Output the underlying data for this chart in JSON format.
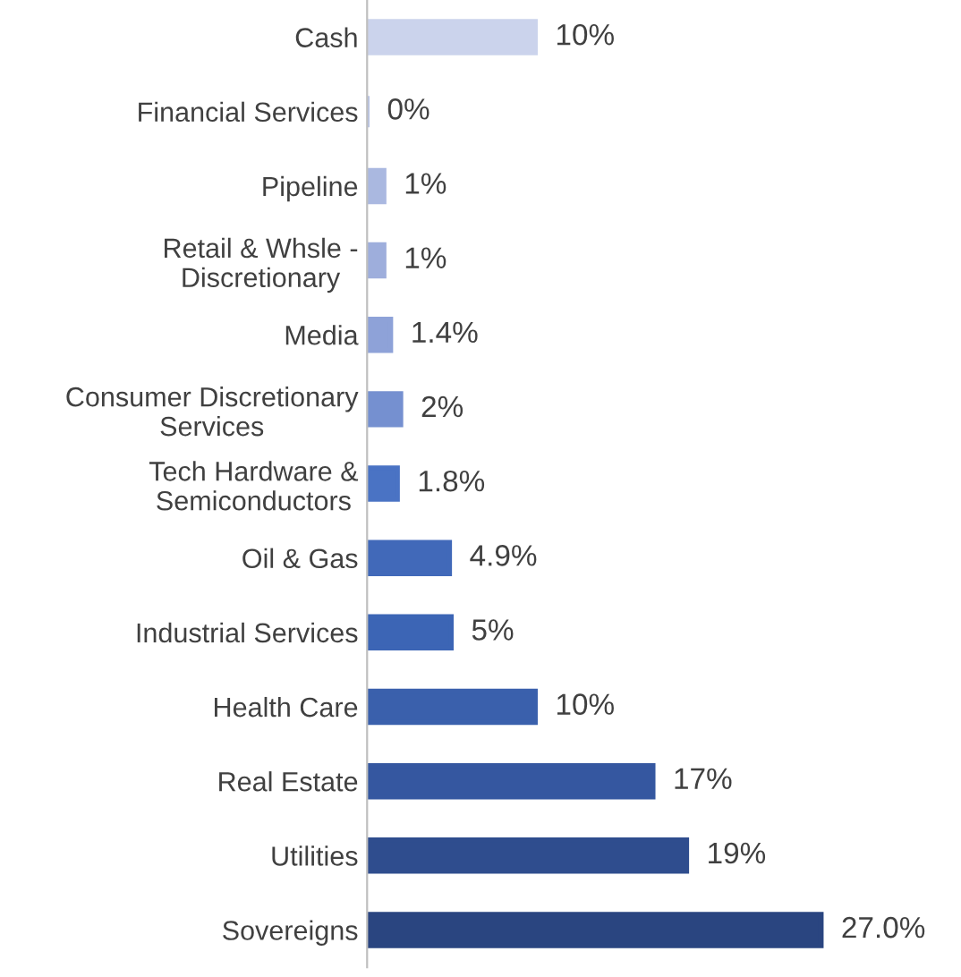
{
  "chart_data": {
    "type": "bar",
    "orientation": "horizontal",
    "categories": [
      "Cash",
      "Financial Services",
      "Pipeline",
      "Retail & Whsle -\nDiscretionary",
      "Media",
      "Consumer Discretionary\nServices",
      "Tech Hardware &\nSemiconductors",
      "Oil & Gas",
      "Industrial Services",
      "Health Care",
      "Real Estate",
      "Utilities",
      "Sovereigns"
    ],
    "values": [
      10,
      0,
      1,
      1,
      1.4,
      2,
      1.8,
      4.9,
      5,
      10,
      17,
      19,
      27.0
    ],
    "value_labels": [
      "10%",
      "0%",
      "1%",
      "1%",
      "1.4%",
      "2%",
      "1.8%",
      "4.9%",
      "5%",
      "10%",
      "17%",
      "19%",
      "27.0%"
    ],
    "colors": [
      "#cbd3ec",
      "#b9c4e6",
      "#aab8e0",
      "#9eaedc",
      "#8ea2d8",
      "#7590d0",
      "#4a73c4",
      "#4169b9",
      "#3c65b5",
      "#3a60ac",
      "#3557a0",
      "#2f4d8e",
      "#2a4580"
    ],
    "tick_labels": "y",
    "grid": false,
    "legend": false
  }
}
